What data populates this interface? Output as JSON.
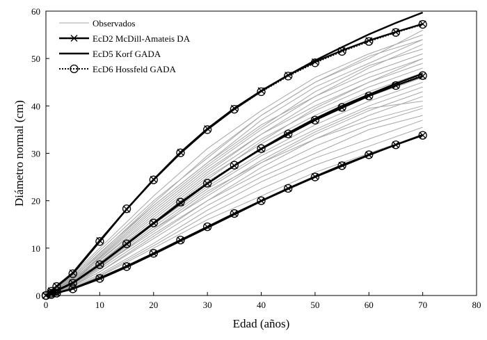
{
  "chart_data": {
    "type": "line",
    "xlabel": "Edad (años)",
    "ylabel": "Diámetro normal (cm)",
    "xlim": [
      0,
      80
    ],
    "ylim": [
      0,
      60
    ],
    "xticks": [
      0,
      10,
      20,
      30,
      40,
      50,
      60,
      70,
      80
    ],
    "yticks": [
      0,
      10,
      20,
      30,
      40,
      50,
      60
    ],
    "grid": false,
    "legend_position": "top-left",
    "observed": {
      "name": "Observados",
      "color": "#a6a6a6",
      "curves": [
        {
          "x": [
            0,
            5,
            10,
            20,
            30,
            40,
            50,
            60,
            70
          ],
          "y": [
            0,
            3,
            7,
            16,
            25,
            32,
            38,
            43,
            47
          ]
        },
        {
          "x": [
            0,
            5,
            10,
            20,
            30,
            40,
            50,
            60,
            70
          ],
          "y": [
            0,
            2,
            5,
            12,
            19,
            25,
            30,
            35,
            38
          ]
        },
        {
          "x": [
            0,
            5,
            10,
            20,
            30,
            40,
            50,
            60,
            70
          ],
          "y": [
            0,
            4,
            9,
            19,
            28,
            36,
            42,
            47,
            51
          ]
        },
        {
          "x": [
            0,
            5,
            10,
            20,
            30,
            40,
            50,
            60,
            70
          ],
          "y": [
            0,
            1.5,
            4,
            10,
            16,
            21,
            26,
            30,
            34
          ]
        },
        {
          "x": [
            0,
            5,
            10,
            20,
            30,
            40,
            50,
            60,
            70
          ],
          "y": [
            0,
            3.5,
            8,
            18,
            27,
            35,
            42,
            48,
            53
          ]
        },
        {
          "x": [
            0,
            5,
            10,
            20,
            30,
            40,
            50,
            60,
            70
          ],
          "y": [
            0,
            2.5,
            6,
            14,
            22,
            28,
            34,
            39,
            43
          ]
        },
        {
          "x": [
            0,
            5,
            10,
            20,
            30,
            40,
            50,
            60,
            70
          ],
          "y": [
            0,
            4.5,
            10,
            21,
            31,
            39,
            46,
            51,
            55
          ]
        },
        {
          "x": [
            0,
            5,
            10,
            20,
            30,
            40,
            50,
            60,
            70
          ],
          "y": [
            0,
            2,
            5.5,
            13,
            20,
            27,
            33,
            38,
            42
          ]
        },
        {
          "x": [
            0,
            5,
            10,
            20,
            30,
            40,
            50,
            60,
            70
          ],
          "y": [
            0,
            3,
            7.5,
            17,
            26,
            34,
            40,
            45,
            49
          ]
        },
        {
          "x": [
            0,
            5,
            10,
            20,
            30,
            40,
            50,
            60,
            70
          ],
          "y": [
            0,
            1.8,
            4.5,
            11,
            18,
            24,
            29,
            33,
            37
          ]
        },
        {
          "x": [
            0,
            5,
            10,
            20,
            30,
            40,
            50,
            60,
            70
          ],
          "y": [
            0,
            3.8,
            8.5,
            19,
            28,
            37,
            44,
            49,
            54
          ]
        },
        {
          "x": [
            0,
            5,
            10,
            20,
            30,
            40,
            50,
            60,
            70
          ],
          "y": [
            0,
            2.8,
            6.5,
            15,
            23,
            30,
            36,
            41,
            45
          ]
        },
        {
          "x": [
            0,
            5,
            10,
            20,
            30,
            40,
            50,
            60,
            70
          ],
          "y": [
            0,
            3.2,
            7.8,
            17.5,
            26.5,
            34,
            41,
            46,
            50
          ]
        },
        {
          "x": [
            0,
            5,
            10,
            20,
            30,
            40,
            50,
            60,
            70
          ],
          "y": [
            0,
            2.2,
            5.8,
            14,
            21,
            28,
            33,
            37,
            40
          ]
        },
        {
          "x": [
            0,
            5,
            10,
            20,
            30,
            40,
            50,
            60,
            70
          ],
          "y": [
            0,
            4.2,
            9.5,
            20,
            29,
            38,
            45,
            50,
            56
          ]
        },
        {
          "x": [
            0,
            5,
            10,
            20,
            30,
            40,
            50,
            60,
            70
          ],
          "y": [
            0,
            2.6,
            6.2,
            14.5,
            22.5,
            29.5,
            35,
            40,
            44
          ]
        },
        {
          "x": [
            0,
            5,
            10,
            20,
            30,
            40,
            50,
            60,
            70
          ],
          "y": [
            0,
            3.4,
            8.2,
            18.5,
            27.5,
            35.5,
            43,
            48.5,
            52
          ]
        },
        {
          "x": [
            0,
            5,
            10,
            20,
            30,
            40,
            50,
            60,
            70
          ],
          "y": [
            0,
            1.6,
            4.2,
            10.5,
            17,
            22.5,
            27.5,
            31.5,
            35.5
          ]
        },
        {
          "x": [
            0,
            5,
            10,
            20,
            30,
            40,
            50,
            60,
            70
          ],
          "y": [
            0,
            3,
            7,
            15.5,
            24,
            31,
            37,
            42,
            46
          ]
        },
        {
          "x": [
            0,
            5,
            10,
            20,
            30,
            40,
            50,
            60,
            70
          ],
          "y": [
            0,
            2.4,
            6,
            13.5,
            21.5,
            28.5,
            34.5,
            39.5,
            41
          ]
        },
        {
          "x": [
            0,
            5,
            10,
            20,
            30,
            40,
            50,
            60,
            70
          ],
          "y": [
            0,
            3.6,
            8.8,
            19.5,
            29.5,
            38,
            45,
            50.5,
            54
          ]
        },
        {
          "x": [
            0,
            5,
            10,
            20,
            30,
            40,
            50,
            60,
            70
          ],
          "y": [
            0,
            2,
            5,
            12.5,
            20,
            26,
            31.5,
            36,
            39.5
          ]
        },
        {
          "x": [
            0,
            5,
            10,
            20,
            30,
            40,
            50,
            60,
            70
          ],
          "y": [
            0,
            3.3,
            7.4,
            16.5,
            25.5,
            33,
            39,
            44,
            48
          ]
        },
        {
          "x": [
            0,
            5,
            10,
            20,
            30,
            40,
            50,
            60,
            70
          ],
          "y": [
            0,
            2.7,
            6.8,
            15.5,
            24.5,
            32.5,
            39.5,
            45,
            50
          ]
        }
      ]
    },
    "series": [
      {
        "name": "EcD2 McDill-Amateis DA",
        "color": "#000000",
        "style": "solid",
        "marker": "x",
        "curves": [
          {
            "x": [
              0,
              1,
              2,
              5,
              10,
              15,
              20,
              25,
              30,
              35,
              40,
              45,
              50,
              55,
              60,
              65,
              70
            ],
            "y": [
              0,
              1.0,
              2.0,
              4.8,
              11.6,
              18.2,
              24.5,
              30.2,
              35.2,
              39.5,
              43.2,
              46.5,
              49.3,
              51.7,
              53.8,
              55.6,
              57.3
            ]
          },
          {
            "x": [
              0,
              1,
              2,
              5,
              10,
              15,
              20,
              25,
              30,
              35,
              40,
              45,
              50,
              55,
              60,
              65,
              70
            ],
            "y": [
              0,
              0.5,
              1.1,
              2.7,
              6.6,
              10.9,
              15.3,
              19.6,
              23.6,
              27.4,
              30.9,
              34.0,
              37.0,
              39.6,
              42.1,
              44.3,
              46.3
            ]
          },
          {
            "x": [
              0,
              1,
              2,
              5,
              10,
              15,
              20,
              25,
              30,
              35,
              40,
              45,
              50,
              55,
              60,
              65,
              70
            ],
            "y": [
              0,
              0.25,
              0.55,
              1.5,
              3.7,
              6.2,
              8.9,
              11.7,
              14.5,
              17.3,
              20.0,
              22.6,
              25.1,
              27.5,
              29.7,
              31.8,
              33.8
            ]
          }
        ]
      },
      {
        "name": "EcD5 Korf GADA",
        "color": "#000000",
        "style": "solid",
        "marker": "none",
        "curves": [
          {
            "x": [
              0,
              1,
              2,
              5,
              10,
              15,
              20,
              25,
              30,
              35,
              40,
              45,
              50,
              55,
              60,
              65,
              70
            ],
            "y": [
              0,
              0.9,
              1.9,
              4.6,
              11.4,
              18.2,
              24.4,
              30.0,
              35.0,
              39.3,
              43.1,
              46.5,
              49.6,
              52.4,
              55.1,
              57.5,
              59.7
            ]
          },
          {
            "x": [
              0,
              1,
              2,
              5,
              10,
              15,
              20,
              25,
              30,
              35,
              40,
              45,
              50,
              55,
              60,
              65,
              70
            ],
            "y": [
              0,
              0.5,
              1.0,
              2.6,
              6.5,
              10.8,
              15.2,
              19.4,
              23.6,
              27.4,
              31.0,
              34.3,
              37.3,
              40.0,
              42.4,
              44.7,
              46.8
            ]
          },
          {
            "x": [
              0,
              1,
              2,
              5,
              10,
              15,
              20,
              25,
              30,
              35,
              40,
              45,
              50,
              55,
              60,
              65,
              70
            ],
            "y": [
              0,
              0.2,
              0.5,
              1.4,
              3.5,
              6.0,
              8.7,
              11.5,
              14.3,
              17.1,
              19.9,
              22.5,
              25.0,
              27.3,
              29.6,
              31.8,
              33.9
            ]
          }
        ]
      },
      {
        "name": "EcD6 Hossfeld GADA",
        "color": "#000000",
        "style": "dotted",
        "marker": "circle",
        "curves": [
          {
            "x": [
              0,
              1,
              2,
              5,
              10,
              15,
              20,
              25,
              30,
              35,
              40,
              45,
              50,
              55,
              60,
              65,
              70
            ],
            "y": [
              0,
              0.9,
              1.9,
              4.6,
              11.4,
              18.3,
              24.4,
              30.1,
              35.0,
              39.3,
              43.0,
              46.3,
              49.1,
              51.5,
              53.6,
              55.5,
              57.2
            ]
          },
          {
            "x": [
              0,
              1,
              2,
              5,
              10,
              15,
              20,
              25,
              30,
              35,
              40,
              45,
              50,
              55,
              60,
              65,
              70
            ],
            "y": [
              0,
              0.5,
              1.0,
              2.6,
              6.5,
              10.9,
              15.3,
              19.7,
              23.7,
              27.5,
              31.0,
              34.1,
              37.0,
              39.7,
              42.1,
              44.3,
              46.4
            ]
          },
          {
            "x": [
              0,
              1,
              2,
              5,
              10,
              15,
              20,
              25,
              30,
              35,
              40,
              45,
              50,
              55,
              60,
              65,
              70
            ],
            "y": [
              0,
              0.2,
              0.5,
              1.4,
              3.6,
              6.1,
              8.9,
              11.7,
              14.5,
              17.3,
              20.0,
              22.6,
              25.0,
              27.4,
              29.7,
              31.8,
              33.8
            ]
          }
        ]
      }
    ]
  }
}
